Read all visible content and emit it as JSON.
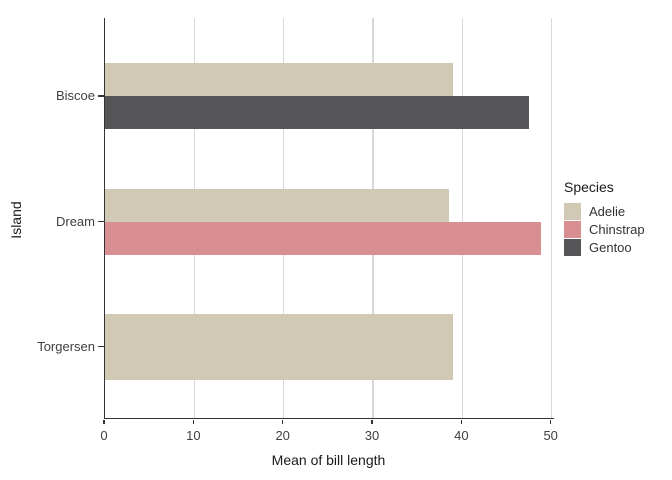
{
  "chart_data": {
    "type": "bar",
    "orientation": "horizontal",
    "categories": [
      "Biscoe",
      "Dream",
      "Torgersen"
    ],
    "series": [
      {
        "name": "Adelie",
        "color": "#d1c9b4",
        "values": [
          38.98,
          38.5,
          38.95
        ]
      },
      {
        "name": "Chinstrap",
        "color": "#d98e92",
        "values": [
          null,
          48.83,
          null
        ]
      },
      {
        "name": "Gentoo",
        "color": "#565658",
        "values": [
          47.5,
          null,
          null
        ]
      }
    ],
    "xlabel": "Mean of bill length",
    "ylabel": "Island",
    "xlim": [
      0,
      50.3
    ],
    "xticks": [
      "0",
      "10",
      "20",
      "30",
      "40",
      "50"
    ],
    "xtick_values": [
      0,
      10,
      20,
      30,
      40,
      50
    ],
    "grid": "vertical-only",
    "legend": {
      "title": "Species",
      "position": "right",
      "entries": [
        "Adelie",
        "Chinstrap",
        "Gentoo"
      ]
    },
    "colors": {
      "background": "#ffffff",
      "grid": "#d8d8d8",
      "axis_line": "#333333",
      "tick_label": "#404040",
      "title_text": "#1a1a1a"
    }
  }
}
